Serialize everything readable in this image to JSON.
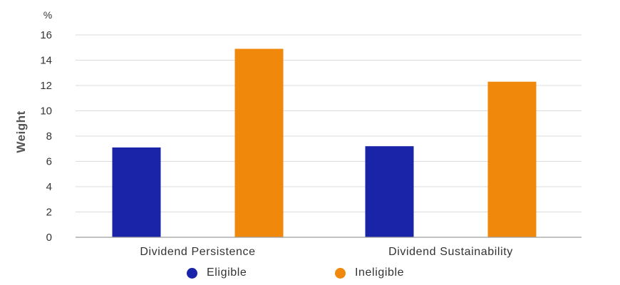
{
  "chart_data": {
    "type": "bar",
    "categories": [
      "Dividend Persistence",
      "Dividend Sustainability"
    ],
    "series": [
      {
        "name": "Eligible",
        "color": "#1a24a8",
        "values": [
          7.1,
          7.2
        ]
      },
      {
        "name": "Ineligible",
        "color": "#f0890b",
        "values": [
          14.9,
          12.3
        ]
      }
    ],
    "ylabel": "Weight",
    "yunit": "%",
    "ylim": [
      0,
      16
    ],
    "yticks": [
      0,
      2,
      4,
      6,
      8,
      10,
      12,
      14,
      16
    ],
    "grid": true,
    "legend": "bottom"
  }
}
